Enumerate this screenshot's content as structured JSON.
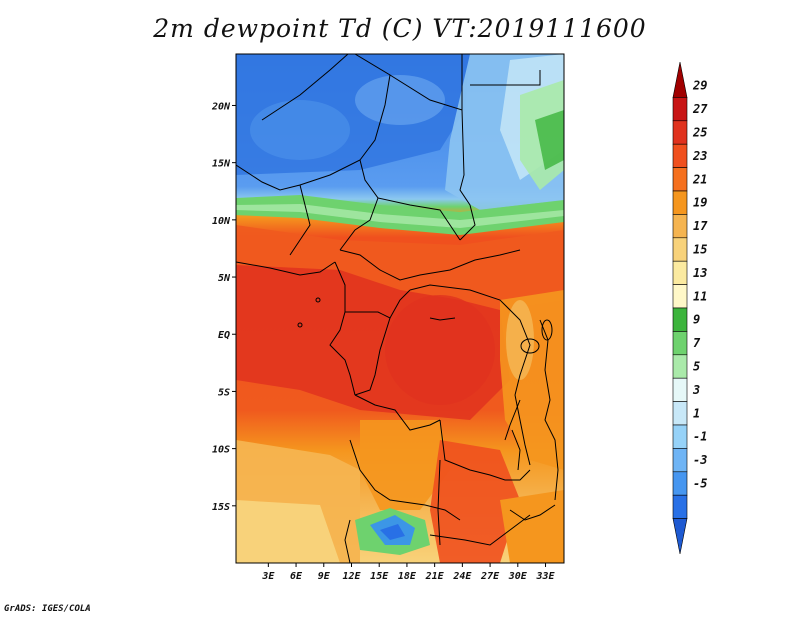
{
  "title": "2m dewpoint Td (C) VT:2019111600",
  "credit": "GrADS: IGES/COLA",
  "chart_data": {
    "type": "heatmap",
    "title": "2m dewpoint Td (C) VT:2019111600",
    "xlabel": "",
    "ylabel": "",
    "xlim": [
      -0.5,
      35
    ],
    "ylim": [
      -20,
      24.5
    ],
    "x_ticks": [
      {
        "value": 3,
        "label": "3E"
      },
      {
        "value": 6,
        "label": "6E"
      },
      {
        "value": 9,
        "label": "9E"
      },
      {
        "value": 12,
        "label": "12E"
      },
      {
        "value": 15,
        "label": "15E"
      },
      {
        "value": 18,
        "label": "18E"
      },
      {
        "value": 21,
        "label": "21E"
      },
      {
        "value": 24,
        "label": "24E"
      },
      {
        "value": 27,
        "label": "27E"
      },
      {
        "value": 30,
        "label": "30E"
      },
      {
        "value": 33,
        "label": "33E"
      }
    ],
    "y_ticks": [
      {
        "value": 20,
        "label": "20N"
      },
      {
        "value": 15,
        "label": "15N"
      },
      {
        "value": 10,
        "label": "10N"
      },
      {
        "value": 5,
        "label": "5N"
      },
      {
        "value": 0,
        "label": "EQ"
      },
      {
        "value": -5,
        "label": "5S"
      },
      {
        "value": -10,
        "label": "10S"
      },
      {
        "value": -15,
        "label": "15S"
      }
    ],
    "colorbar": {
      "labels": [
        "29",
        "27",
        "25",
        "23",
        "21",
        "19",
        "17",
        "15",
        "13",
        "11",
        "9",
        "7",
        "5",
        "3",
        "1",
        "-1",
        "-3",
        "-5"
      ],
      "colors_top_to_bottom": [
        "#a00000",
        "#c81414",
        "#e0321e",
        "#f0501e",
        "#f5701e",
        "#f5961e",
        "#f5b450",
        "#f8d27a",
        "#fbeaa0",
        "#fff8c8",
        "#3cb43c",
        "#6ed26e",
        "#aaeaaa",
        "#e6f8f8",
        "#c8e8f8",
        "#96d2f8",
        "#6eb4f5",
        "#4696f0",
        "#2870e6",
        "#1e5ad2"
      ]
    }
  }
}
